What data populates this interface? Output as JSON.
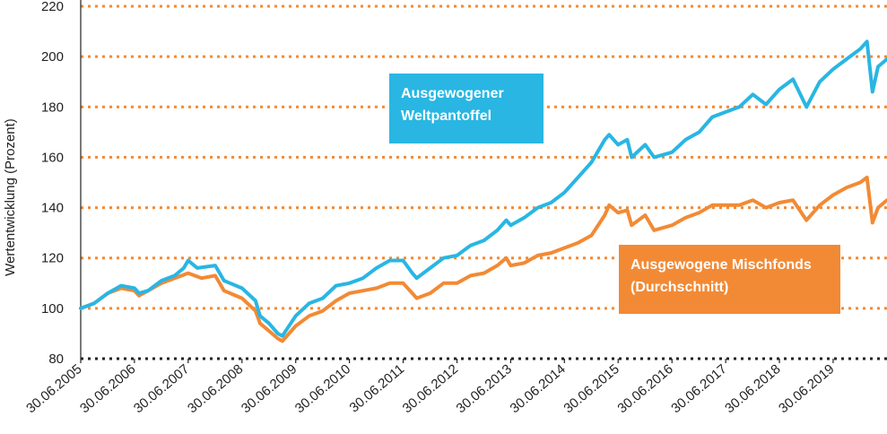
{
  "chart_data": {
    "type": "line",
    "ylabel": "Wertentwicklung (Prozent)",
    "ylim": [
      80,
      220
    ],
    "yticks": [
      80,
      100,
      120,
      140,
      160,
      180,
      200,
      220
    ],
    "grid": "horizontal-dotted",
    "xlim": [
      "2005-06-30",
      "2020-06-30"
    ],
    "xtick_labels": [
      "30.06.2005",
      "30.06.2006",
      "30.06.2007",
      "30.06.2008",
      "30.06.2009",
      "30.06.2010",
      "30.06.2011",
      "30.06.2012",
      "30.06.2013",
      "30.06.2014",
      "30.06.2015",
      "30.06.2016",
      "30.06.2017",
      "30.06.2018",
      "30.06.2019"
    ],
    "series": [
      {
        "name": "Ausgewogener Weltpantoffel",
        "name_lines": [
          "Ausgewogener",
          "Weltpantoffel"
        ],
        "color": "#29b6e3",
        "points": [
          [
            "2005-06-30",
            100
          ],
          [
            "2005-09-30",
            102
          ],
          [
            "2005-12-31",
            106
          ],
          [
            "2006-03-31",
            109
          ],
          [
            "2006-06-30",
            108
          ],
          [
            "2006-07-31",
            106
          ],
          [
            "2006-09-30",
            107
          ],
          [
            "2006-12-31",
            111
          ],
          [
            "2007-03-31",
            113
          ],
          [
            "2007-05-31",
            116
          ],
          [
            "2007-06-30",
            119
          ],
          [
            "2007-08-31",
            116
          ],
          [
            "2007-12-31",
            117
          ],
          [
            "2008-02-29",
            111
          ],
          [
            "2008-06-30",
            108
          ],
          [
            "2008-09-30",
            103
          ],
          [
            "2008-10-31",
            97
          ],
          [
            "2008-12-31",
            94
          ],
          [
            "2009-02-28",
            90
          ],
          [
            "2009-03-31",
            89
          ],
          [
            "2009-06-30",
            97
          ],
          [
            "2009-09-30",
            102
          ],
          [
            "2009-12-31",
            104
          ],
          [
            "2010-03-31",
            109
          ],
          [
            "2010-06-30",
            110
          ],
          [
            "2010-09-30",
            112
          ],
          [
            "2010-12-31",
            116
          ],
          [
            "2011-03-31",
            119
          ],
          [
            "2011-06-30",
            119
          ],
          [
            "2011-08-31",
            114
          ],
          [
            "2011-09-30",
            112
          ],
          [
            "2011-12-31",
            116
          ],
          [
            "2012-03-31",
            120
          ],
          [
            "2012-06-30",
            121
          ],
          [
            "2012-09-30",
            125
          ],
          [
            "2012-12-31",
            127
          ],
          [
            "2013-03-31",
            131
          ],
          [
            "2013-05-31",
            135
          ],
          [
            "2013-06-30",
            133
          ],
          [
            "2013-09-30",
            136
          ],
          [
            "2013-12-31",
            140
          ],
          [
            "2014-03-31",
            142
          ],
          [
            "2014-06-30",
            146
          ],
          [
            "2014-09-30",
            152
          ],
          [
            "2014-12-31",
            158
          ],
          [
            "2015-03-31",
            167
          ],
          [
            "2015-04-30",
            169
          ],
          [
            "2015-06-30",
            165
          ],
          [
            "2015-08-31",
            167
          ],
          [
            "2015-09-30",
            160
          ],
          [
            "2015-12-31",
            165
          ],
          [
            "2016-02-29",
            160
          ],
          [
            "2016-06-30",
            162
          ],
          [
            "2016-09-30",
            167
          ],
          [
            "2016-12-31",
            170
          ],
          [
            "2017-03-31",
            176
          ],
          [
            "2017-06-30",
            178
          ],
          [
            "2017-09-30",
            180
          ],
          [
            "2017-12-31",
            185
          ],
          [
            "2018-03-31",
            181
          ],
          [
            "2018-06-30",
            187
          ],
          [
            "2018-09-30",
            191
          ],
          [
            "2018-12-31",
            180
          ],
          [
            "2019-03-31",
            190
          ],
          [
            "2019-06-30",
            195
          ],
          [
            "2019-09-30",
            199
          ],
          [
            "2019-12-31",
            203
          ],
          [
            "2020-02-15",
            206
          ],
          [
            "2020-03-23",
            186
          ],
          [
            "2020-04-30",
            196
          ],
          [
            "2020-06-30",
            199
          ]
        ]
      },
      {
        "name": "Ausgewogene Mischfonds (Durchschnitt)",
        "name_lines": [
          "Ausgewogene Mischfonds",
          "(Durchschnitt)"
        ],
        "color": "#f28a35",
        "points": [
          [
            "2005-06-30",
            100
          ],
          [
            "2005-09-30",
            102
          ],
          [
            "2005-12-31",
            106
          ],
          [
            "2006-03-31",
            108
          ],
          [
            "2006-06-30",
            107
          ],
          [
            "2006-07-31",
            105
          ],
          [
            "2006-09-30",
            107
          ],
          [
            "2006-12-31",
            110
          ],
          [
            "2007-03-31",
            112
          ],
          [
            "2007-06-30",
            114
          ],
          [
            "2007-09-30",
            112
          ],
          [
            "2007-12-31",
            113
          ],
          [
            "2008-02-29",
            107
          ],
          [
            "2008-06-30",
            104
          ],
          [
            "2008-09-30",
            99
          ],
          [
            "2008-10-31",
            94
          ],
          [
            "2008-12-31",
            91
          ],
          [
            "2009-02-28",
            88
          ],
          [
            "2009-03-31",
            87
          ],
          [
            "2009-06-30",
            93
          ],
          [
            "2009-09-30",
            97
          ],
          [
            "2009-12-31",
            99
          ],
          [
            "2010-03-31",
            103
          ],
          [
            "2010-06-30",
            106
          ],
          [
            "2010-09-30",
            107
          ],
          [
            "2010-12-31",
            108
          ],
          [
            "2011-03-31",
            110
          ],
          [
            "2011-06-30",
            110
          ],
          [
            "2011-08-31",
            106
          ],
          [
            "2011-09-30",
            104
          ],
          [
            "2011-12-31",
            106
          ],
          [
            "2012-03-31",
            110
          ],
          [
            "2012-06-30",
            110
          ],
          [
            "2012-09-30",
            113
          ],
          [
            "2012-12-31",
            114
          ],
          [
            "2013-03-31",
            117
          ],
          [
            "2013-05-31",
            120
          ],
          [
            "2013-06-30",
            117
          ],
          [
            "2013-09-30",
            118
          ],
          [
            "2013-12-31",
            121
          ],
          [
            "2014-03-31",
            122
          ],
          [
            "2014-06-30",
            124
          ],
          [
            "2014-09-30",
            126
          ],
          [
            "2014-12-31",
            129
          ],
          [
            "2015-03-31",
            137
          ],
          [
            "2015-04-30",
            141
          ],
          [
            "2015-06-30",
            138
          ],
          [
            "2015-08-31",
            139
          ],
          [
            "2015-09-30",
            133
          ],
          [
            "2015-12-31",
            137
          ],
          [
            "2016-02-29",
            131
          ],
          [
            "2016-06-30",
            133
          ],
          [
            "2016-09-30",
            136
          ],
          [
            "2016-12-31",
            138
          ],
          [
            "2017-03-31",
            141
          ],
          [
            "2017-06-30",
            141
          ],
          [
            "2017-09-30",
            141
          ],
          [
            "2017-12-31",
            143
          ],
          [
            "2018-03-31",
            140
          ],
          [
            "2018-06-30",
            142
          ],
          [
            "2018-09-30",
            143
          ],
          [
            "2018-12-31",
            135
          ],
          [
            "2019-03-31",
            141
          ],
          [
            "2019-06-30",
            145
          ],
          [
            "2019-09-30",
            148
          ],
          [
            "2019-12-31",
            150
          ],
          [
            "2020-02-15",
            152
          ],
          [
            "2020-03-23",
            134
          ],
          [
            "2020-04-30",
            140
          ],
          [
            "2020-06-30",
            143
          ]
        ]
      }
    ]
  }
}
